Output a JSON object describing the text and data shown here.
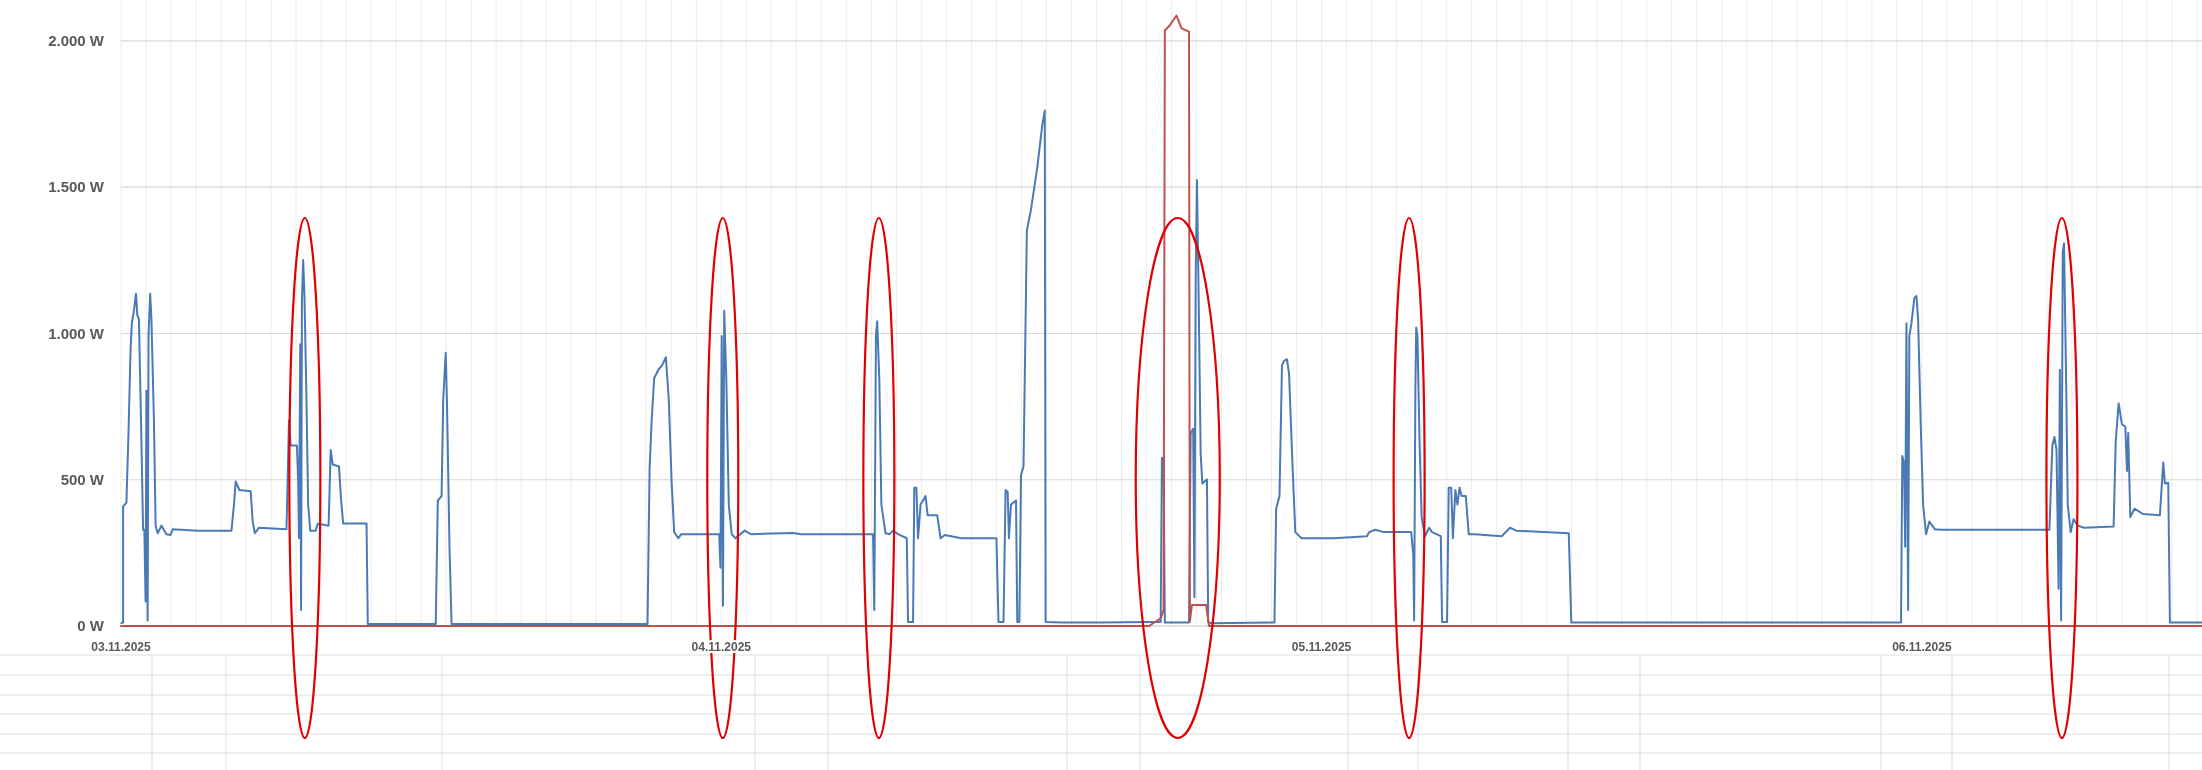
{
  "chart_data": {
    "type": "line",
    "ylim": [
      0,
      2140
    ],
    "xlim": [
      "2025-11-03T00:00",
      "2025-11-06T11:12"
    ],
    "yticks": [
      {
        "value": 0,
        "label": "0 W"
      },
      {
        "value": 500,
        "label": "500 W"
      },
      {
        "value": 1000,
        "label": "1.000 W"
      },
      {
        "value": 1500,
        "label": "1.500 W"
      },
      {
        "value": 2000,
        "label": "2.000 W"
      }
    ],
    "xticks": [
      {
        "value": "2025-11-03T00:00",
        "label": "03.11.2025"
      },
      {
        "value": "2025-11-03T01:00",
        "label": null
      },
      {
        "value": "2025-11-03T02:00",
        "label": null
      },
      {
        "value": "2025-11-03T03:00",
        "label": null
      },
      {
        "value": "2025-11-03T04:00",
        "label": null
      },
      {
        "value": "2025-11-03T05:00",
        "label": null
      },
      {
        "value": "2025-11-03T06:00",
        "label": null
      },
      {
        "value": "2025-11-03T07:00",
        "label": null
      },
      {
        "value": "2025-11-03T08:00",
        "label": null
      },
      {
        "value": "2025-11-03T09:00",
        "label": null
      },
      {
        "value": "2025-11-03T10:00",
        "label": null
      },
      {
        "value": "2025-11-03T11:00",
        "label": null
      },
      {
        "value": "2025-11-03T12:00",
        "label": null
      },
      {
        "value": "2025-11-03T13:00",
        "label": null
      },
      {
        "value": "2025-11-03T14:00",
        "label": null
      },
      {
        "value": "2025-11-03T15:00",
        "label": null
      },
      {
        "value": "2025-11-03T16:00",
        "label": null
      },
      {
        "value": "2025-11-03T17:00",
        "label": null
      },
      {
        "value": "2025-11-03T18:00",
        "label": null
      },
      {
        "value": "2025-11-03T19:00",
        "label": null
      },
      {
        "value": "2025-11-03T20:00",
        "label": null
      },
      {
        "value": "2025-11-03T21:00",
        "label": null
      },
      {
        "value": "2025-11-03T22:00",
        "label": null
      },
      {
        "value": "2025-11-03T23:00",
        "label": null
      },
      {
        "value": "2025-11-04T00:00",
        "label": "04.11.2025"
      },
      {
        "value": "2025-11-04T01:00",
        "label": null
      },
      {
        "value": "2025-11-04T02:00",
        "label": null
      },
      {
        "value": "2025-11-04T03:00",
        "label": null
      },
      {
        "value": "2025-11-04T04:00",
        "label": null
      },
      {
        "value": "2025-11-04T05:00",
        "label": null
      },
      {
        "value": "2025-11-04T06:00",
        "label": null
      },
      {
        "value": "2025-11-04T07:00",
        "label": null
      },
      {
        "value": "2025-11-04T08:00",
        "label": null
      },
      {
        "value": "2025-11-04T09:00",
        "label": null
      },
      {
        "value": "2025-11-04T10:00",
        "label": null
      },
      {
        "value": "2025-11-04T11:00",
        "label": null
      },
      {
        "value": "2025-11-04T12:00",
        "label": null
      },
      {
        "value": "2025-11-04T13:00",
        "label": null
      },
      {
        "value": "2025-11-04T14:00",
        "label": null
      },
      {
        "value": "2025-11-04T15:00",
        "label": null
      },
      {
        "value": "2025-11-04T16:00",
        "label": null
      },
      {
        "value": "2025-11-04T17:00",
        "label": null
      },
      {
        "value": "2025-11-04T18:00",
        "label": null
      },
      {
        "value": "2025-11-04T19:00",
        "label": null
      },
      {
        "value": "2025-11-04T20:00",
        "label": null
      },
      {
        "value": "2025-11-04T21:00",
        "label": null
      },
      {
        "value": "2025-11-04T22:00",
        "label": null
      },
      {
        "value": "2025-11-04T23:00",
        "label": null
      },
      {
        "value": "2025-11-05T00:00",
        "label": "05.11.2025"
      },
      {
        "value": "2025-11-05T01:00",
        "label": null
      },
      {
        "value": "2025-11-05T02:00",
        "label": null
      },
      {
        "value": "2025-11-05T03:00",
        "label": null
      },
      {
        "value": "2025-11-05T04:00",
        "label": null
      },
      {
        "value": "2025-11-05T05:00",
        "label": null
      },
      {
        "value": "2025-11-05T06:00",
        "label": null
      },
      {
        "value": "2025-11-05T07:00",
        "label": null
      },
      {
        "value": "2025-11-05T08:00",
        "label": null
      },
      {
        "value": "2025-11-05T09:00",
        "label": null
      },
      {
        "value": "2025-11-05T10:00",
        "label": null
      },
      {
        "value": "2025-11-05T11:00",
        "label": null
      },
      {
        "value": "2025-11-05T12:00",
        "label": null
      },
      {
        "value": "2025-11-05T13:00",
        "label": null
      },
      {
        "value": "2025-11-05T14:00",
        "label": null
      },
      {
        "value": "2025-11-05T15:00",
        "label": null
      },
      {
        "value": "2025-11-05T16:00",
        "label": null
      },
      {
        "value": "2025-11-05T17:00",
        "label": null
      },
      {
        "value": "2025-11-05T18:00",
        "label": null
      },
      {
        "value": "2025-11-05T19:00",
        "label": null
      },
      {
        "value": "2025-11-05T20:00",
        "label": null
      },
      {
        "value": "2025-11-05T21:00",
        "label": null
      },
      {
        "value": "2025-11-05T22:00",
        "label": null
      },
      {
        "value": "2025-11-05T23:00",
        "label": null
      },
      {
        "value": "2025-11-06T00:00",
        "label": "06.11.2025"
      },
      {
        "value": "2025-11-06T01:00",
        "label": null
      },
      {
        "value": "2025-11-06T02:00",
        "label": null
      },
      {
        "value": "2025-11-06T03:00",
        "label": null
      },
      {
        "value": "2025-11-06T04:00",
        "label": null
      },
      {
        "value": "2025-11-06T05:00",
        "label": null
      },
      {
        "value": "2025-11-06T06:00",
        "label": null
      },
      {
        "value": "2025-11-06T07:00",
        "label": null
      },
      {
        "value": "2025-11-06T08:00",
        "label": null
      },
      {
        "value": "2025-11-06T09:00",
        "label": null
      },
      {
        "value": "2025-11-06T10:00",
        "label": null
      },
      {
        "value": "2025-11-06T11:00",
        "label": null
      }
    ],
    "grid": true,
    "line_style": "solid",
    "series": [
      {
        "color": "#4a7ab5",
        "x": [
          "2025-11-03T00:01",
          "2025-11-03T00:05",
          "2025-11-03T00:05",
          "2025-11-03T00:13",
          "2025-11-03T00:18",
          "2025-11-03T00:23",
          "2025-11-03T00:26",
          "2025-11-03T00:31",
          "2025-11-03T00:36",
          "2025-11-03T00:39",
          "2025-11-03T00:43",
          "2025-11-03T00:48",
          "2025-11-03T00:53",
          "2025-11-03T00:56",
          "2025-11-03T00:59",
          "2025-11-03T01:01",
          "2025-11-03T01:04",
          "2025-11-03T01:06",
          "2025-11-03T01:10",
          "2025-11-03T01:13",
          "2025-11-03T01:19",
          "2025-11-03T01:23",
          "2025-11-03T01:28",
          "2025-11-03T01:37",
          "2025-11-03T01:49",
          "2025-11-03T01:59",
          "2025-11-03T02:04",
          "2025-11-03T03:04",
          "2025-11-03T04:25",
          "2025-11-03T04:31",
          "2025-11-03T04:35",
          "2025-11-03T04:44",
          "2025-11-03T05:11",
          "2025-11-03T05:16",
          "2025-11-03T05:21",
          "2025-11-03T05:31",
          "2025-11-03T06:37",
          "2025-11-03T06:43",
          "2025-11-03T06:47",
          "2025-11-03T07:02",
          "2025-11-03T07:05",
          "2025-11-03T07:07",
          "2025-11-03T07:10",
          "2025-11-03T07:12",
          "2025-11-03T07:14",
          "2025-11-03T07:17",
          "2025-11-03T07:20",
          "2025-11-03T07:24",
          "2025-11-03T07:29",
          "2025-11-03T07:34",
          "2025-11-03T07:47",
          "2025-11-03T07:52",
          "2025-11-03T08:18",
          "2025-11-03T08:23",
          "2025-11-03T08:28",
          "2025-11-03T08:43",
          "2025-11-03T08:48",
          "2025-11-03T08:53",
          "2025-11-03T09:49",
          "2025-11-03T09:52",
          "2025-11-03T12:35",
          "2025-11-03T12:40",
          "2025-11-03T12:49",
          "2025-11-03T12:53",
          "2025-11-03T12:59",
          "2025-11-03T13:02",
          "2025-11-03T13:08",
          "2025-11-03T13:13",
          "2025-11-03T17:34",
          "2025-11-03T21:03",
          "2025-11-03T21:08",
          "2025-11-03T21:13",
          "2025-11-03T21:19",
          "2025-11-03T21:29",
          "2025-11-03T21:38",
          "2025-11-03T21:47",
          "2025-11-03T21:54",
          "2025-11-03T22:01",
          "2025-11-03T22:07",
          "2025-11-03T22:17",
          "2025-11-03T22:24",
          "2025-11-03T23:55",
          "2025-11-03T23:58",
          "2025-11-04T00:01",
          "2025-11-04T00:04",
          "2025-11-04T00:07",
          "2025-11-04T00:12",
          "2025-11-04T00:18",
          "2025-11-04T00:25",
          "2025-11-04T00:34",
          "2025-11-04T00:56",
          "2025-11-04T01:11",
          "2025-11-04T02:52",
          "2025-11-04T03:12",
          "2025-11-04T06:04",
          "2025-11-04T06:07",
          "2025-11-04T06:11",
          "2025-11-04T06:14",
          "2025-11-04T06:19",
          "2025-11-04T06:24",
          "2025-11-04T06:34",
          "2025-11-04T06:44",
          "2025-11-04T06:52",
          "2025-11-04T07:04",
          "2025-11-04T07:25",
          "2025-11-04T07:28",
          "2025-11-04T07:40",
          "2025-11-04T07:43",
          "2025-11-04T07:48",
          "2025-11-04T07:52",
          "2025-11-04T07:58",
          "2025-11-04T08:10",
          "2025-11-04T08:15",
          "2025-11-04T08:38",
          "2025-11-04T08:46",
          "2025-11-04T08:56",
          "2025-11-04T09:36",
          "2025-11-04T10:26",
          "2025-11-04T11:00",
          "2025-11-04T11:05",
          "2025-11-04T11:17",
          "2025-11-04T11:22",
          "2025-11-04T11:27",
          "2025-11-04T11:30",
          "2025-11-04T11:35",
          "2025-11-04T11:47",
          "2025-11-04T11:50",
          "2025-11-04T11:55",
          "2025-11-04T11:59",
          "2025-11-04T12:05",
          "2025-11-04T12:13",
          "2025-11-04T12:23",
          "2025-11-04T12:38",
          "2025-11-04T12:50",
          "2025-11-04T12:56",
          "2025-11-04T12:58",
          "2025-11-04T13:38",
          "2025-11-04T15:10",
          "2025-11-04T17:03",
          "2025-11-04T17:34",
          "2025-11-04T17:37",
          "2025-11-04T17:41",
          "2025-11-04T17:44",
          "2025-11-04T18:42",
          "2025-11-04T18:46",
          "2025-11-04T18:52",
          "2025-11-04T18:55",
          "2025-11-04T18:58",
          "2025-11-04T19:01",
          "2025-11-04T19:05",
          "2025-11-04T19:10",
          "2025-11-04T19:14",
          "2025-11-04T19:25",
          "2025-11-04T19:28",
          "2025-11-04T19:35",
          "2025-11-04T22:07",
          "2025-11-04T22:11",
          "2025-11-04T22:19",
          "2025-11-04T22:25",
          "2025-11-04T22:29",
          "2025-11-04T22:37",
          "2025-11-04T22:42",
          "2025-11-04T22:50",
          "2025-11-04T22:57",
          "2025-11-04T23:12",
          "2025-11-05T00:28",
          "2025-11-05T01:49",
          "2025-11-05T01:54",
          "2025-11-05T02:09",
          "2025-11-05T02:29",
          "2025-11-05T03:35",
          "2025-11-05T03:40",
          "2025-11-05T03:42",
          "2025-11-05T03:45",
          "2025-11-05T03:47",
          "2025-11-05T03:50",
          "2025-11-05T03:55",
          "2025-11-05T04:00",
          "2025-11-05T04:08",
          "2025-11-05T04:18",
          "2025-11-05T04:25",
          "2025-11-05T04:46",
          "2025-11-05T04:49",
          "2025-11-05T05:01",
          "2025-11-05T05:05",
          "2025-11-05T05:11",
          "2025-11-05T05:15",
          "2025-11-05T05:21",
          "2025-11-05T05:26",
          "2025-11-05T05:31",
          "2025-11-05T05:36",
          "2025-11-05T05:46",
          "2025-11-05T05:53",
          "2025-11-05T06:07",
          "2025-11-05T07:12",
          "2025-11-05T07:32",
          "2025-11-05T07:47",
          "2025-11-05T08:53",
          "2025-11-05T09:53",
          "2025-11-05T09:59",
          "2025-11-05T12:46",
          "2025-11-05T22:04",
          "2025-11-05T23:10",
          "2025-11-05T23:13",
          "2025-11-05T23:17",
          "2025-11-05T23:20",
          "2025-11-05T23:23",
          "2025-11-05T23:27",
          "2025-11-05T23:30",
          "2025-11-05T23:35",
          "2025-11-05T23:42",
          "2025-11-05T23:47",
          "2025-11-05T23:51",
          "2025-11-05T23:57",
          "2025-11-06T00:03",
          "2025-11-06T00:10",
          "2025-11-06T00:18",
          "2025-11-06T00:31",
          "2025-11-06T00:46",
          "2025-11-06T05:06",
          "2025-11-06T05:13",
          "2025-11-06T05:18",
          "2025-11-06T05:23",
          "2025-11-06T05:28",
          "2025-11-06T05:31",
          "2025-11-06T05:34",
          "2025-11-06T05:38",
          "2025-11-06T05:41",
          "2025-11-06T05:46",
          "2025-11-06T05:50",
          "2025-11-06T05:57",
          "2025-11-06T06:04",
          "2025-11-06T06:14",
          "2025-11-06T06:29",
          "2025-11-06T07:40",
          "2025-11-06T07:45",
          "2025-11-06T07:52",
          "2025-11-06T08:00",
          "2025-11-06T08:08",
          "2025-11-06T08:12",
          "2025-11-06T08:15",
          "2025-11-06T08:20",
          "2025-11-06T08:30",
          "2025-11-06T08:50",
          "2025-11-06T09:31",
          "2025-11-06T09:39",
          "2025-11-06T09:43",
          "2025-11-06T09:51",
          "2025-11-06T09:55",
          "2025-11-06T11:12"
        ],
        "values": [
          10,
          12,
          408,
          422,
          660,
          948,
          1035,
          1078,
          1136,
          1063,
          1049,
          703,
          329,
          329,
          84,
          804,
          19,
          991,
          1136,
          1049,
          703,
          343,
          317,
          343,
          314,
          311,
          331,
          326,
          326,
          415,
          494,
          465,
          461,
          357,
          317,
          336,
          331,
          703,
          617,
          617,
          501,
          300,
          963,
          55,
          1107,
          1251,
          1136,
          847,
          415,
          326,
          326,
          350,
          343,
          602,
          552,
          545,
          429,
          350,
          350,
          7,
          7,
          429,
          444,
          775,
          934,
          761,
          271,
          7,
          7,
          7,
          538,
          703,
          847,
          876,
          891,
          919,
          775,
          487,
          321,
          300,
          314,
          314,
          199,
          991,
          69,
          1078,
          847,
          415,
          314,
          300,
          326,
          314,
          318,
          314,
          314,
          55,
          991,
          1042,
          847,
          415,
          317,
          314,
          326,
          314,
          300,
          14,
          14,
          473,
          473,
          300,
          415,
          444,
          379,
          379,
          300,
          311,
          300,
          300,
          300,
          14,
          14,
          465,
          458,
          300,
          415,
          429,
          14,
          14,
          516,
          545,
          1352,
          1424,
          1568,
          1712,
          1762,
          14,
          12,
          12,
          14,
          14,
          574,
          574,
          12,
          12,
          660,
          674,
          98,
          1193,
          1525,
          1136,
          588,
          487,
          501,
          14,
          9,
          12,
          401,
          444,
          891,
          905,
          912,
          862,
          559,
          321,
          300,
          300,
          307,
          321,
          329,
          321,
          321,
          242,
          19,
          804,
          1020,
          991,
          631,
          372,
          307,
          336,
          321,
          307,
          14,
          14,
          473,
          473,
          300,
          465,
          415,
          473,
          444,
          444,
          314,
          314,
          307,
          336,
          326,
          321,
          317,
          12,
          12,
          12,
          12,
          581,
          559,
          271,
          1035,
          55,
          991,
          1035,
          1121,
          1128,
          1049,
          703,
          415,
          314,
          357,
          331,
          329,
          329,
          617,
          646,
          602,
          127,
          876,
          19,
          1280,
          1308,
          847,
          415,
          321,
          365,
          343,
          336,
          340,
          631,
          761,
          689,
          682,
          530,
          660,
          372,
          401,
          383,
          379,
          559,
          487,
          490,
          12,
          12
        ]
      },
      {
        "color": "#c0504d",
        "x": [
          "2025-11-03T00:00",
          "2025-11-04T17:06",
          "2025-11-04T17:34",
          "2025-11-04T17:41",
          "2025-11-04T17:44",
          "2025-11-04T17:54",
          "2025-11-04T18:12",
          "2025-11-04T18:24",
          "2025-11-04T18:42",
          "2025-11-04T18:44",
          "2025-11-04T18:49",
          "2025-11-04T19:23",
          "2025-11-04T19:30",
          "2025-11-06T11:12"
        ],
        "values": [
          0,
          0,
          26,
          55,
          2036,
          2050,
          2087,
          2043,
          2032,
          14,
          72,
          72,
          0,
          0
        ]
      }
    ]
  }
}
